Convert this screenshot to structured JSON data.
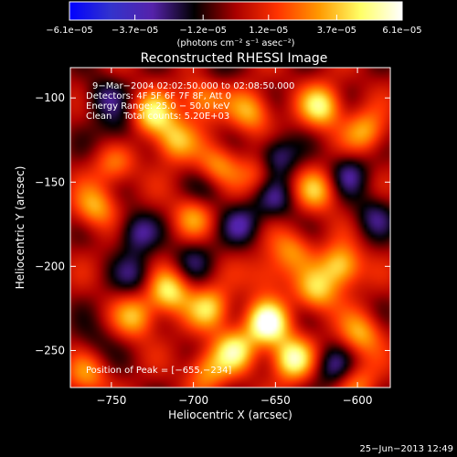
{
  "chart_data": {
    "type": "heatmap",
    "title": "Reconstructed RHESSI Image",
    "xlabel": "Heliocentric X (arcsec)",
    "ylabel": "Heliocentric Y (arcsec)",
    "xlim": [
      -775,
      -580
    ],
    "ylim": [
      -272,
      -82
    ],
    "x_ticks": [
      -750,
      -700,
      -650,
      -600
    ],
    "x_tick_labels": [
      "−750",
      "−700",
      "−650",
      "−600"
    ],
    "y_ticks": [
      -100,
      -150,
      -200,
      -250
    ],
    "y_tick_labels": [
      "−100",
      "−150",
      "−200",
      "−250"
    ],
    "colorbar": {
      "range": [
        -6.1e-05,
        6.1e-05
      ],
      "tick_values": [
        -6.1e-05,
        -3.7e-05,
        -1.2e-05,
        1.2e-05,
        3.7e-05,
        6.1e-05
      ],
      "tick_labels": [
        "−6.1e−05",
        "−3.7e−05",
        "−1.2e−05",
        "1.2e−05",
        "3.7e−05",
        "6.1e−05"
      ],
      "unit_label": "(photons cm⁻² s⁻¹ asec⁻²)",
      "colors": [
        "#0000ff",
        "#3333cc",
        "#5522aa",
        "#000000",
        "#aa0000",
        "#ff3300",
        "#ff9900",
        "#ffff66",
        "#ffffff"
      ]
    },
    "annotations": {
      "time_range": "9−Mar−2004 02:02:50.000 to 02:08:50.000",
      "detectors": "Detectors: 4F 5F 6F 7F 8F, Att 0",
      "energy_range": "Energy Range: 25.0 − 50.0 keV",
      "clean": "Clean    Total counts: 5.20E+03",
      "peak": "Position of Peak = [−655,−234]"
    },
    "peak_position": [
      -655,
      -234
    ],
    "sources": [
      {
        "x": -655,
        "y": -234,
        "amp": 1.0
      },
      {
        "x": -640,
        "y": -255,
        "amp": 0.85
      },
      {
        "x": -675,
        "y": -250,
        "amp": 0.7
      },
      {
        "x": -715,
        "y": -215,
        "amp": 0.75
      },
      {
        "x": -690,
        "y": -225,
        "amp": 0.65
      },
      {
        "x": -735,
        "y": -230,
        "amp": 0.55
      },
      {
        "x": -725,
        "y": -110,
        "amp": 0.7
      },
      {
        "x": -712,
        "y": -125,
        "amp": 0.6
      },
      {
        "x": -695,
        "y": -100,
        "amp": 0.6
      },
      {
        "x": -665,
        "y": -108,
        "amp": 0.55
      },
      {
        "x": -622,
        "y": -105,
        "amp": 0.75
      },
      {
        "x": -595,
        "y": -120,
        "amp": 0.55
      },
      {
        "x": -625,
        "y": -155,
        "amp": 0.55
      },
      {
        "x": -610,
        "y": -200,
        "amp": 0.75
      },
      {
        "x": -625,
        "y": -215,
        "amp": 0.6
      },
      {
        "x": -598,
        "y": -240,
        "amp": 0.55
      },
      {
        "x": -640,
        "y": -190,
        "amp": 0.45
      },
      {
        "x": -685,
        "y": -140,
        "amp": 0.5
      },
      {
        "x": -660,
        "y": -145,
        "amp": 0.4
      },
      {
        "x": -760,
        "y": -165,
        "amp": 0.55
      },
      {
        "x": -748,
        "y": -140,
        "amp": 0.4
      },
      {
        "x": -700,
        "y": -170,
        "amp": 0.45
      },
      {
        "x": -765,
        "y": -265,
        "amp": 0.45
      },
      {
        "x": -600,
        "y": -270,
        "amp": 0.4
      },
      {
        "x": -655,
        "y": -205,
        "amp": 0.35
      },
      {
        "x": -692,
        "y": -262,
        "amp": 0.5
      },
      {
        "x": -735,
        "y": -180,
        "amp": -0.45
      },
      {
        "x": -735,
        "y": -205,
        "amp": -0.35
      },
      {
        "x": -650,
        "y": -135,
        "amp": -0.55
      },
      {
        "x": -650,
        "y": -160,
        "amp": -0.4
      },
      {
        "x": -670,
        "y": -175,
        "amp": -0.4
      },
      {
        "x": -700,
        "y": -195,
        "amp": -0.3
      },
      {
        "x": -605,
        "y": -145,
        "amp": -0.4
      },
      {
        "x": -590,
        "y": -170,
        "amp": -0.35
      },
      {
        "x": -755,
        "y": -100,
        "amp": -0.35
      },
      {
        "x": -745,
        "y": -120,
        "amp": -0.3
      },
      {
        "x": -615,
        "y": -260,
        "amp": -0.4
      },
      {
        "x": -690,
        "y": -155,
        "amp": -0.25
      },
      {
        "x": -760,
        "y": -245,
        "amp": -0.2
      },
      {
        "x": -690,
        "y": -85,
        "amp": -0.2
      }
    ]
  },
  "footer": {
    "date": "25−Jun−2013 12:49"
  }
}
